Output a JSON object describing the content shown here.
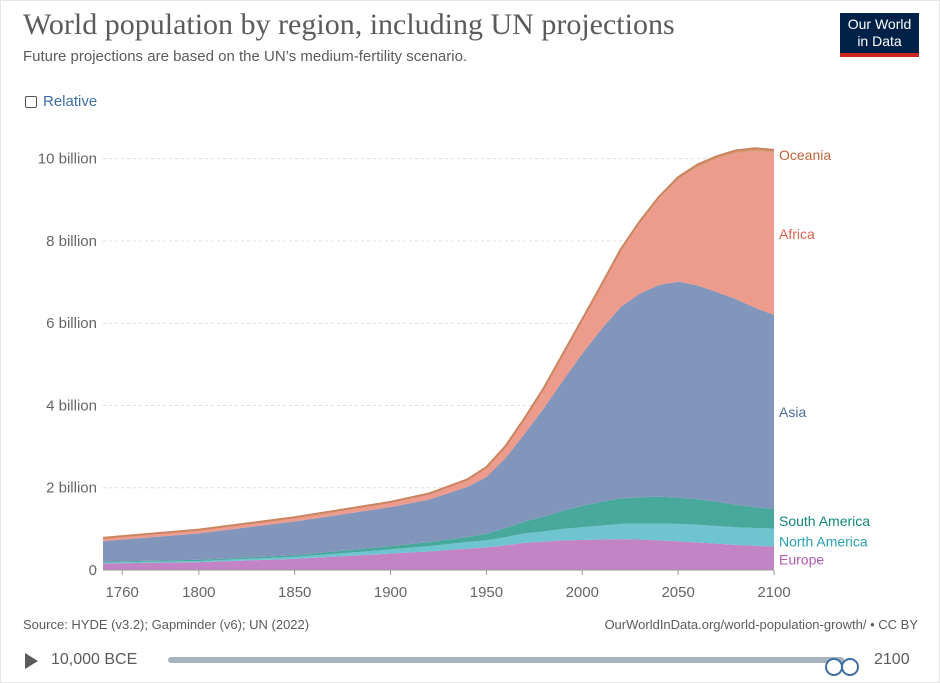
{
  "header": {
    "title": "World population by region, including UN projections",
    "subtitle": "Future projections are based on the UN’s medium-fertility scenario.",
    "logo_line1": "Our World",
    "logo_line2": "in Data"
  },
  "controls": {
    "relative_label": "Relative",
    "relative_checked": false
  },
  "footer": {
    "source": "Source: HYDE (v3.2); Gapminder (v6); UN (2022)",
    "credit": "OurWorldInData.org/world-population-growth/ • CC BY"
  },
  "timeline": {
    "start_label": "10,000 BCE",
    "end_label": "2100"
  },
  "chart_data": {
    "type": "area",
    "stacked": true,
    "x": [
      1750,
      1800,
      1850,
      1900,
      1920,
      1940,
      1950,
      1960,
      1970,
      1980,
      1990,
      2000,
      2010,
      2020,
      2030,
      2040,
      2050,
      2060,
      2070,
      2080,
      2090,
      2100
    ],
    "xticks": [
      1760,
      1800,
      1850,
      1900,
      1950,
      2000,
      2050,
      2100
    ],
    "xlim": [
      1750,
      2100
    ],
    "ylim": [
      0,
      10.6
    ],
    "yticks": [
      0,
      2,
      4,
      6,
      8,
      10
    ],
    "ytick_labels": [
      "0",
      "2 billion",
      "4 billion",
      "6 billion",
      "8 billion",
      "10 billion"
    ],
    "grid": "horizontal dashed",
    "legend": "inline labels at right end",
    "series": [
      {
        "name": "Europe",
        "color": "#c284c4",
        "label_color": "#b159b3",
        "values": [
          0.16,
          0.19,
          0.27,
          0.4,
          0.45,
          0.52,
          0.55,
          0.6,
          0.66,
          0.69,
          0.72,
          0.73,
          0.74,
          0.75,
          0.74,
          0.72,
          0.7,
          0.67,
          0.64,
          0.61,
          0.59,
          0.57
        ]
      },
      {
        "name": "North America",
        "color": "#6ec4cf",
        "label_color": "#2aa0b0",
        "values": [
          0.02,
          0.03,
          0.05,
          0.1,
          0.13,
          0.16,
          0.17,
          0.2,
          0.23,
          0.25,
          0.28,
          0.31,
          0.34,
          0.37,
          0.39,
          0.41,
          0.42,
          0.43,
          0.43,
          0.43,
          0.43,
          0.44
        ]
      },
      {
        "name": "South America",
        "color": "#48a89c",
        "label_color": "#14877a",
        "values": [
          0.02,
          0.03,
          0.04,
          0.08,
          0.1,
          0.12,
          0.16,
          0.22,
          0.29,
          0.36,
          0.44,
          0.52,
          0.58,
          0.62,
          0.64,
          0.65,
          0.64,
          0.62,
          0.59,
          0.55,
          0.51,
          0.47
        ]
      },
      {
        "name": "Asia",
        "color": "#8295bb",
        "label_color": "#4c6a9c",
        "values": [
          0.5,
          0.64,
          0.82,
          0.95,
          1.03,
          1.22,
          1.38,
          1.7,
          2.14,
          2.64,
          3.17,
          3.7,
          4.2,
          4.65,
          4.95,
          5.15,
          5.25,
          5.2,
          5.1,
          5.0,
          4.85,
          4.72
        ]
      },
      {
        "name": "Africa",
        "color": "#ec9b8c",
        "label_color": "#e0634f",
        "values": [
          0.08,
          0.09,
          0.1,
          0.12,
          0.14,
          0.17,
          0.23,
          0.28,
          0.36,
          0.47,
          0.63,
          0.81,
          1.04,
          1.36,
          1.71,
          2.09,
          2.48,
          2.87,
          3.23,
          3.54,
          3.8,
          3.94
        ]
      },
      {
        "name": "Oceania",
        "color": "#d99974",
        "label_color": "#c0643c",
        "values": [
          0.002,
          0.002,
          0.003,
          0.006,
          0.009,
          0.011,
          0.013,
          0.016,
          0.02,
          0.023,
          0.027,
          0.031,
          0.037,
          0.045,
          0.05,
          0.055,
          0.06,
          0.064,
          0.067,
          0.07,
          0.072,
          0.074
        ]
      }
    ]
  }
}
